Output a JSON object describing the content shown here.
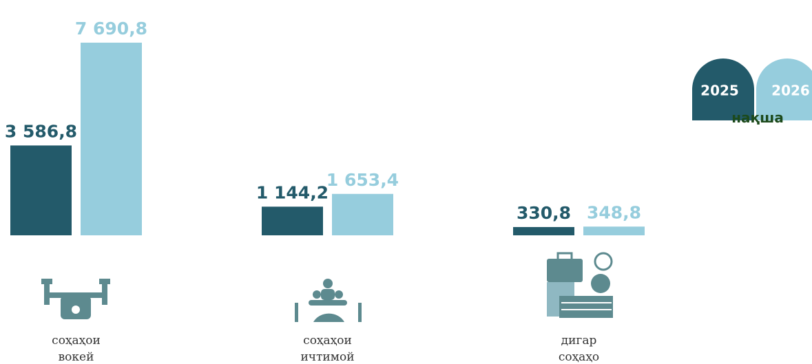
{
  "chart_data": {
    "type": "bar",
    "categories": [
      "соҳаҳои вокей",
      "соҳаҳои ичтимой",
      "дигар соҳаҳо"
    ],
    "series": [
      {
        "name": "2025",
        "color": "#235a6a",
        "values": [
          3586.8,
          1144.2,
          330.8
        ],
        "value_labels": [
          "3 586,8",
          "1 144,2",
          "330,8"
        ]
      },
      {
        "name": "2026",
        "color": "#96cddd",
        "values": [
          7690.8,
          1653.4,
          348.8
        ],
        "value_labels": [
          "7 690,8",
          "1 653,4",
          "348,8"
        ]
      }
    ],
    "ylim": [
      0,
      7690.8
    ],
    "legend_note": "нақша",
    "legend_position": "top-right"
  }
}
